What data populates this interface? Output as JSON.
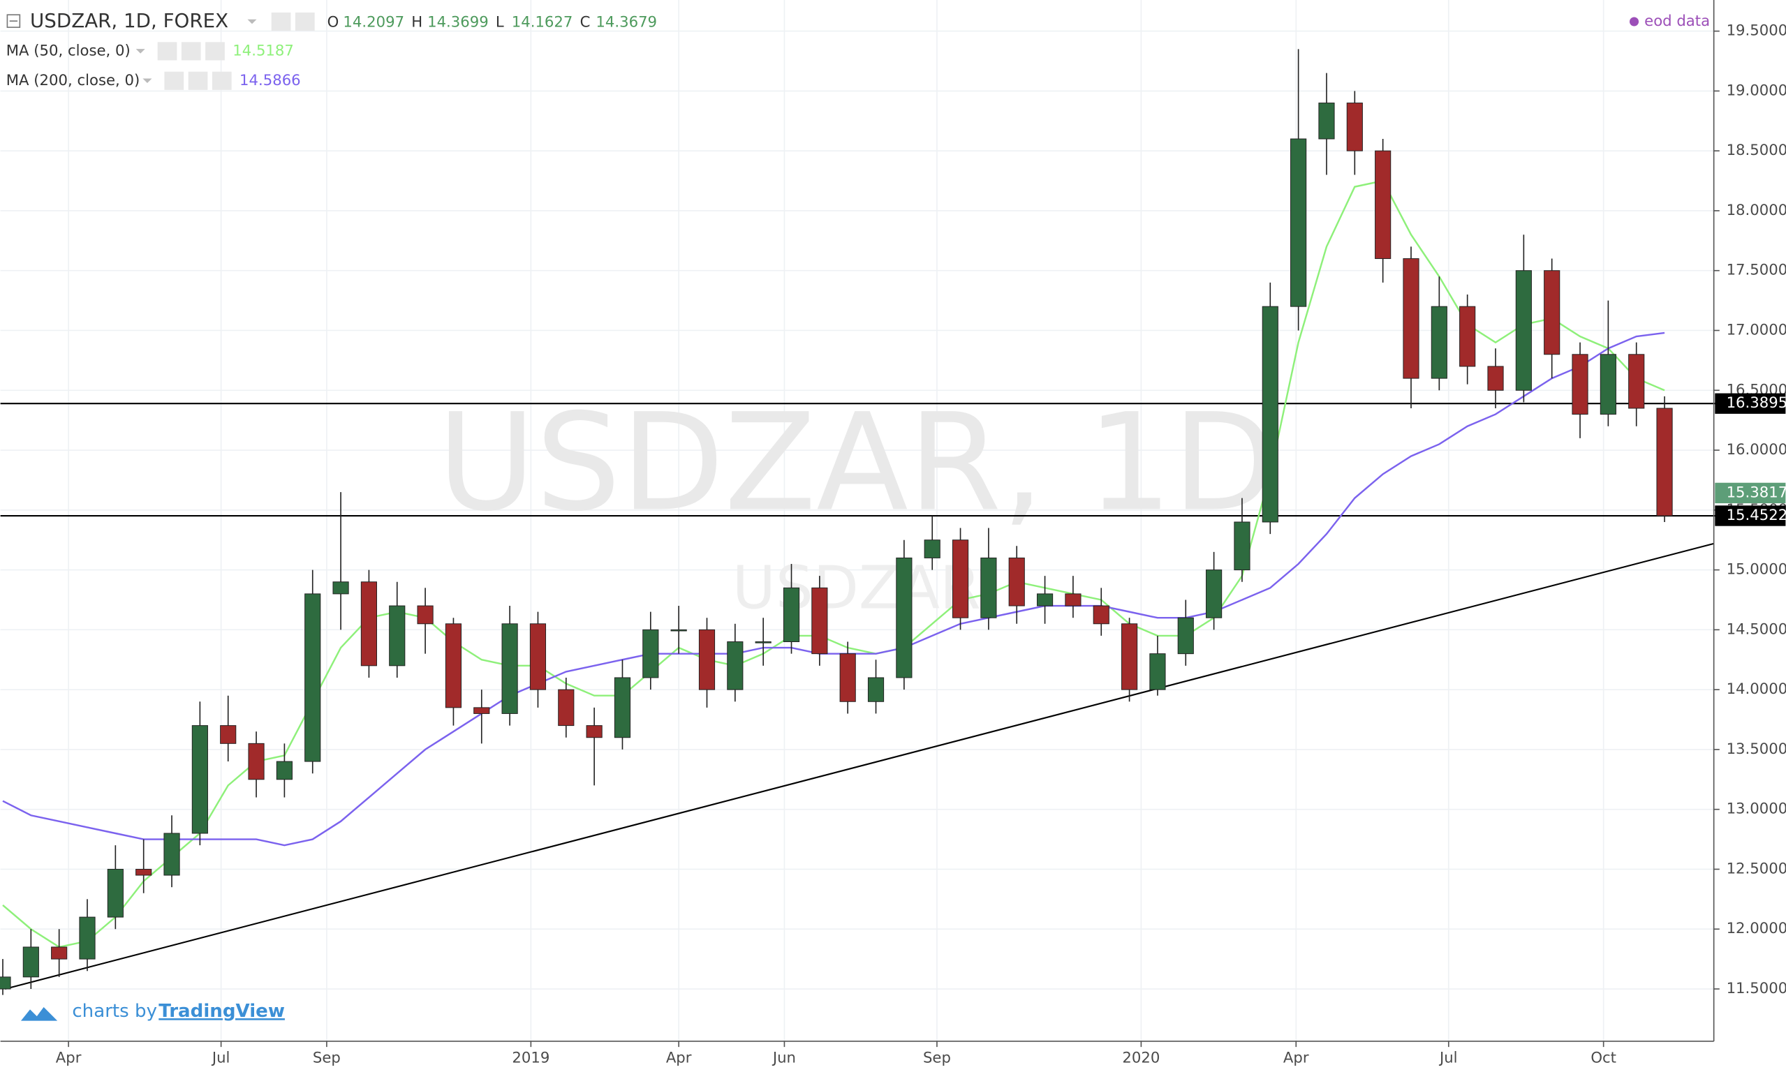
{
  "chart_data": {
    "type": "candlestick",
    "symbol": "USDZAR, 1D, FOREX",
    "ohlc": [
      {
        "label": "O",
        "value": 14.2097
      },
      {
        "label": "H",
        "value": 14.3699
      },
      {
        "label": "L",
        "value": 14.1627
      },
      {
        "label": "C",
        "value": 14.3679
      }
    ],
    "source": "eod data",
    "watermark": "USDZAR, 1D",
    "watermark_small": "USDZAR",
    "branding": {
      "prefix": "charts by",
      "name": "TradingView"
    },
    "up_color": "#2e6b3f",
    "down_color": "#a12a2a",
    "candles": {
      "x": [
        1,
        13,
        25,
        37,
        49,
        61,
        73,
        85,
        97,
        109,
        121,
        133,
        145,
        157,
        169,
        181,
        193,
        205,
        217,
        229,
        241,
        253,
        265,
        277,
        289,
        301,
        313,
        325,
        337,
        349,
        361,
        373,
        385,
        397,
        409,
        421,
        433,
        445,
        457,
        469,
        481,
        493,
        505,
        517,
        529,
        541,
        553,
        565,
        577,
        589,
        601,
        613,
        625,
        637,
        649,
        661,
        673,
        685,
        697,
        709
      ],
      "open": [
        11.5,
        11.6,
        11.85,
        11.75,
        12.1,
        12.5,
        12.45,
        12.8,
        13.7,
        13.55,
        13.25,
        13.4,
        14.8,
        14.9,
        14.2,
        14.7,
        14.55,
        13.85,
        13.8,
        14.55,
        14.0,
        13.7,
        13.6,
        14.1,
        14.5,
        14.5,
        14.0,
        14.4,
        14.4,
        14.85,
        14.3,
        13.9,
        14.1,
        15.1,
        15.25,
        14.6,
        15.1,
        14.7,
        14.8,
        14.7,
        14.55,
        14.0,
        14.3,
        14.6,
        15.0,
        15.4,
        17.2,
        18.6,
        18.9,
        18.5,
        17.6,
        16.6,
        17.2,
        16.7,
        16.5,
        17.5,
        16.8,
        16.3,
        16.8,
        16.35
      ],
      "high": [
        11.75,
        12.0,
        12.0,
        12.25,
        12.7,
        12.75,
        12.95,
        13.9,
        13.95,
        13.65,
        13.55,
        15.0,
        15.65,
        15.0,
        14.9,
        14.85,
        14.6,
        14.0,
        14.7,
        14.65,
        14.1,
        13.85,
        14.25,
        14.65,
        14.7,
        14.6,
        14.55,
        14.6,
        15.05,
        14.95,
        14.4,
        14.25,
        15.25,
        15.45,
        15.35,
        15.35,
        15.2,
        14.95,
        14.95,
        14.85,
        14.6,
        14.45,
        14.75,
        15.15,
        15.6,
        17.4,
        19.35,
        19.15,
        19.0,
        18.6,
        17.7,
        17.45,
        17.3,
        16.85,
        17.8,
        17.6,
        16.9,
        17.25,
        16.9,
        16.45
      ],
      "low": [
        11.45,
        11.5,
        11.6,
        11.65,
        12.0,
        12.3,
        12.35,
        12.7,
        13.4,
        13.1,
        13.1,
        13.3,
        14.5,
        14.1,
        14.1,
        14.3,
        13.7,
        13.55,
        13.7,
        13.85,
        13.6,
        13.2,
        13.5,
        14.0,
        14.3,
        13.85,
        13.9,
        14.2,
        14.3,
        14.2,
        13.8,
        13.8,
        14.0,
        15.0,
        14.5,
        14.5,
        14.55,
        14.55,
        14.6,
        14.45,
        13.9,
        13.95,
        14.2,
        14.5,
        14.9,
        15.3,
        17.0,
        18.3,
        18.3,
        17.4,
        16.35,
        16.5,
        16.55,
        16.35,
        16.4,
        16.6,
        16.1,
        16.2,
        16.2,
        15.4
      ],
      "close": [
        11.6,
        11.85,
        11.75,
        12.1,
        12.5,
        12.45,
        12.8,
        13.7,
        13.55,
        13.25,
        13.4,
        14.8,
        14.9,
        14.2,
        14.7,
        14.55,
        13.85,
        13.8,
        14.55,
        14.0,
        13.7,
        13.6,
        14.1,
        14.5,
        14.5,
        14.0,
        14.4,
        14.4,
        14.85,
        14.3,
        13.9,
        14.1,
        15.1,
        15.25,
        14.6,
        15.1,
        14.7,
        14.8,
        14.7,
        14.55,
        14.0,
        14.3,
        14.6,
        15.0,
        15.4,
        17.2,
        18.6,
        18.9,
        18.5,
        17.6,
        16.6,
        17.2,
        16.7,
        16.5,
        17.5,
        16.8,
        16.3,
        16.8,
        16.35,
        15.4522
      ]
    },
    "series": [
      {
        "name": "MA (50, close, 0)",
        "color": "#8ef07a",
        "legend_value": 14.5187,
        "values": [
          12.2,
          12.0,
          11.85,
          11.9,
          12.1,
          12.4,
          12.6,
          12.8,
          13.2,
          13.4,
          13.45,
          13.9,
          14.35,
          14.6,
          14.65,
          14.6,
          14.4,
          14.25,
          14.2,
          14.2,
          14.05,
          13.95,
          13.95,
          14.15,
          14.35,
          14.25,
          14.2,
          14.3,
          14.45,
          14.45,
          14.35,
          14.3,
          14.35,
          14.55,
          14.75,
          14.8,
          14.9,
          14.85,
          14.8,
          14.75,
          14.55,
          14.45,
          14.45,
          14.6,
          14.95,
          15.8,
          16.9,
          17.7,
          18.2,
          18.25,
          17.8,
          17.45,
          17.05,
          16.9,
          17.05,
          17.1,
          16.95,
          16.85,
          16.6,
          16.5
        ]
      },
      {
        "name": "MA (200, close, 0)",
        "color": "#7b62ee",
        "legend_value": 14.5866,
        "values": [
          13.07,
          12.95,
          12.9,
          12.85,
          12.8,
          12.75,
          12.75,
          12.75,
          12.75,
          12.75,
          12.7,
          12.75,
          12.9,
          13.1,
          13.3,
          13.5,
          13.65,
          13.8,
          13.95,
          14.05,
          14.15,
          14.2,
          14.25,
          14.3,
          14.3,
          14.3,
          14.3,
          14.35,
          14.35,
          14.3,
          14.3,
          14.3,
          14.35,
          14.45,
          14.55,
          14.6,
          14.65,
          14.7,
          14.7,
          14.7,
          14.65,
          14.6,
          14.6,
          14.65,
          14.75,
          14.85,
          15.05,
          15.3,
          15.6,
          15.8,
          15.95,
          16.05,
          16.2,
          16.3,
          16.45,
          16.6,
          16.7,
          16.85,
          16.95,
          16.98
        ]
      }
    ],
    "trend_line": {
      "x": [
        2,
        730
      ],
      "y": [
        11.5,
        15.22
      ]
    },
    "horizontal_lines": [
      16.3895,
      15.4522
    ],
    "price_labels": [
      {
        "value": 16.3895,
        "color": "#000000"
      },
      {
        "value": 15.4522,
        "color": "#000000"
      },
      {
        "value": 15.3817,
        "color": "#5d9e78"
      }
    ],
    "xlim": [
      0,
      730
    ],
    "ylim": [
      11.063,
      19.76
    ],
    "xticks": [
      {
        "value": 29,
        "label": "Apr"
      },
      {
        "value": 94,
        "label": "Jul"
      },
      {
        "value": 139,
        "label": "Sep"
      },
      {
        "value": 226,
        "label": "2019"
      },
      {
        "value": 289,
        "label": "Apr"
      },
      {
        "value": 334,
        "label": "Jun"
      },
      {
        "value": 399,
        "label": "Sep"
      },
      {
        "value": 486,
        "label": "2020"
      },
      {
        "value": 552,
        "label": "Apr"
      },
      {
        "value": 617,
        "label": "Jul"
      },
      {
        "value": 683,
        "label": "Oct"
      }
    ],
    "yticks": [
      {
        "value": 11.5,
        "label": "11.5000"
      },
      {
        "value": 12,
        "label": "12.0000"
      },
      {
        "value": 12.5,
        "label": "12.5000"
      },
      {
        "value": 13,
        "label": "13.0000"
      },
      {
        "value": 13.5,
        "label": "13.5000"
      },
      {
        "value": 14,
        "label": "14.0000"
      },
      {
        "value": 14.5,
        "label": "14.5000"
      },
      {
        "value": 15,
        "label": "15.0000"
      },
      {
        "value": 15.5,
        "label": "15.5000"
      },
      {
        "value": 16,
        "label": "16.0000"
      },
      {
        "value": 16.5,
        "label": "16.5000"
      },
      {
        "value": 17,
        "label": "17.0000"
      },
      {
        "value": 17.5,
        "label": "17.5000"
      },
      {
        "value": 18,
        "label": "18.0000"
      },
      {
        "value": 18.5,
        "label": "18.5000"
      },
      {
        "value": 19,
        "label": "19.0000"
      },
      {
        "value": 19.5,
        "label": "19.5000"
      }
    ],
    "grid": true
  }
}
